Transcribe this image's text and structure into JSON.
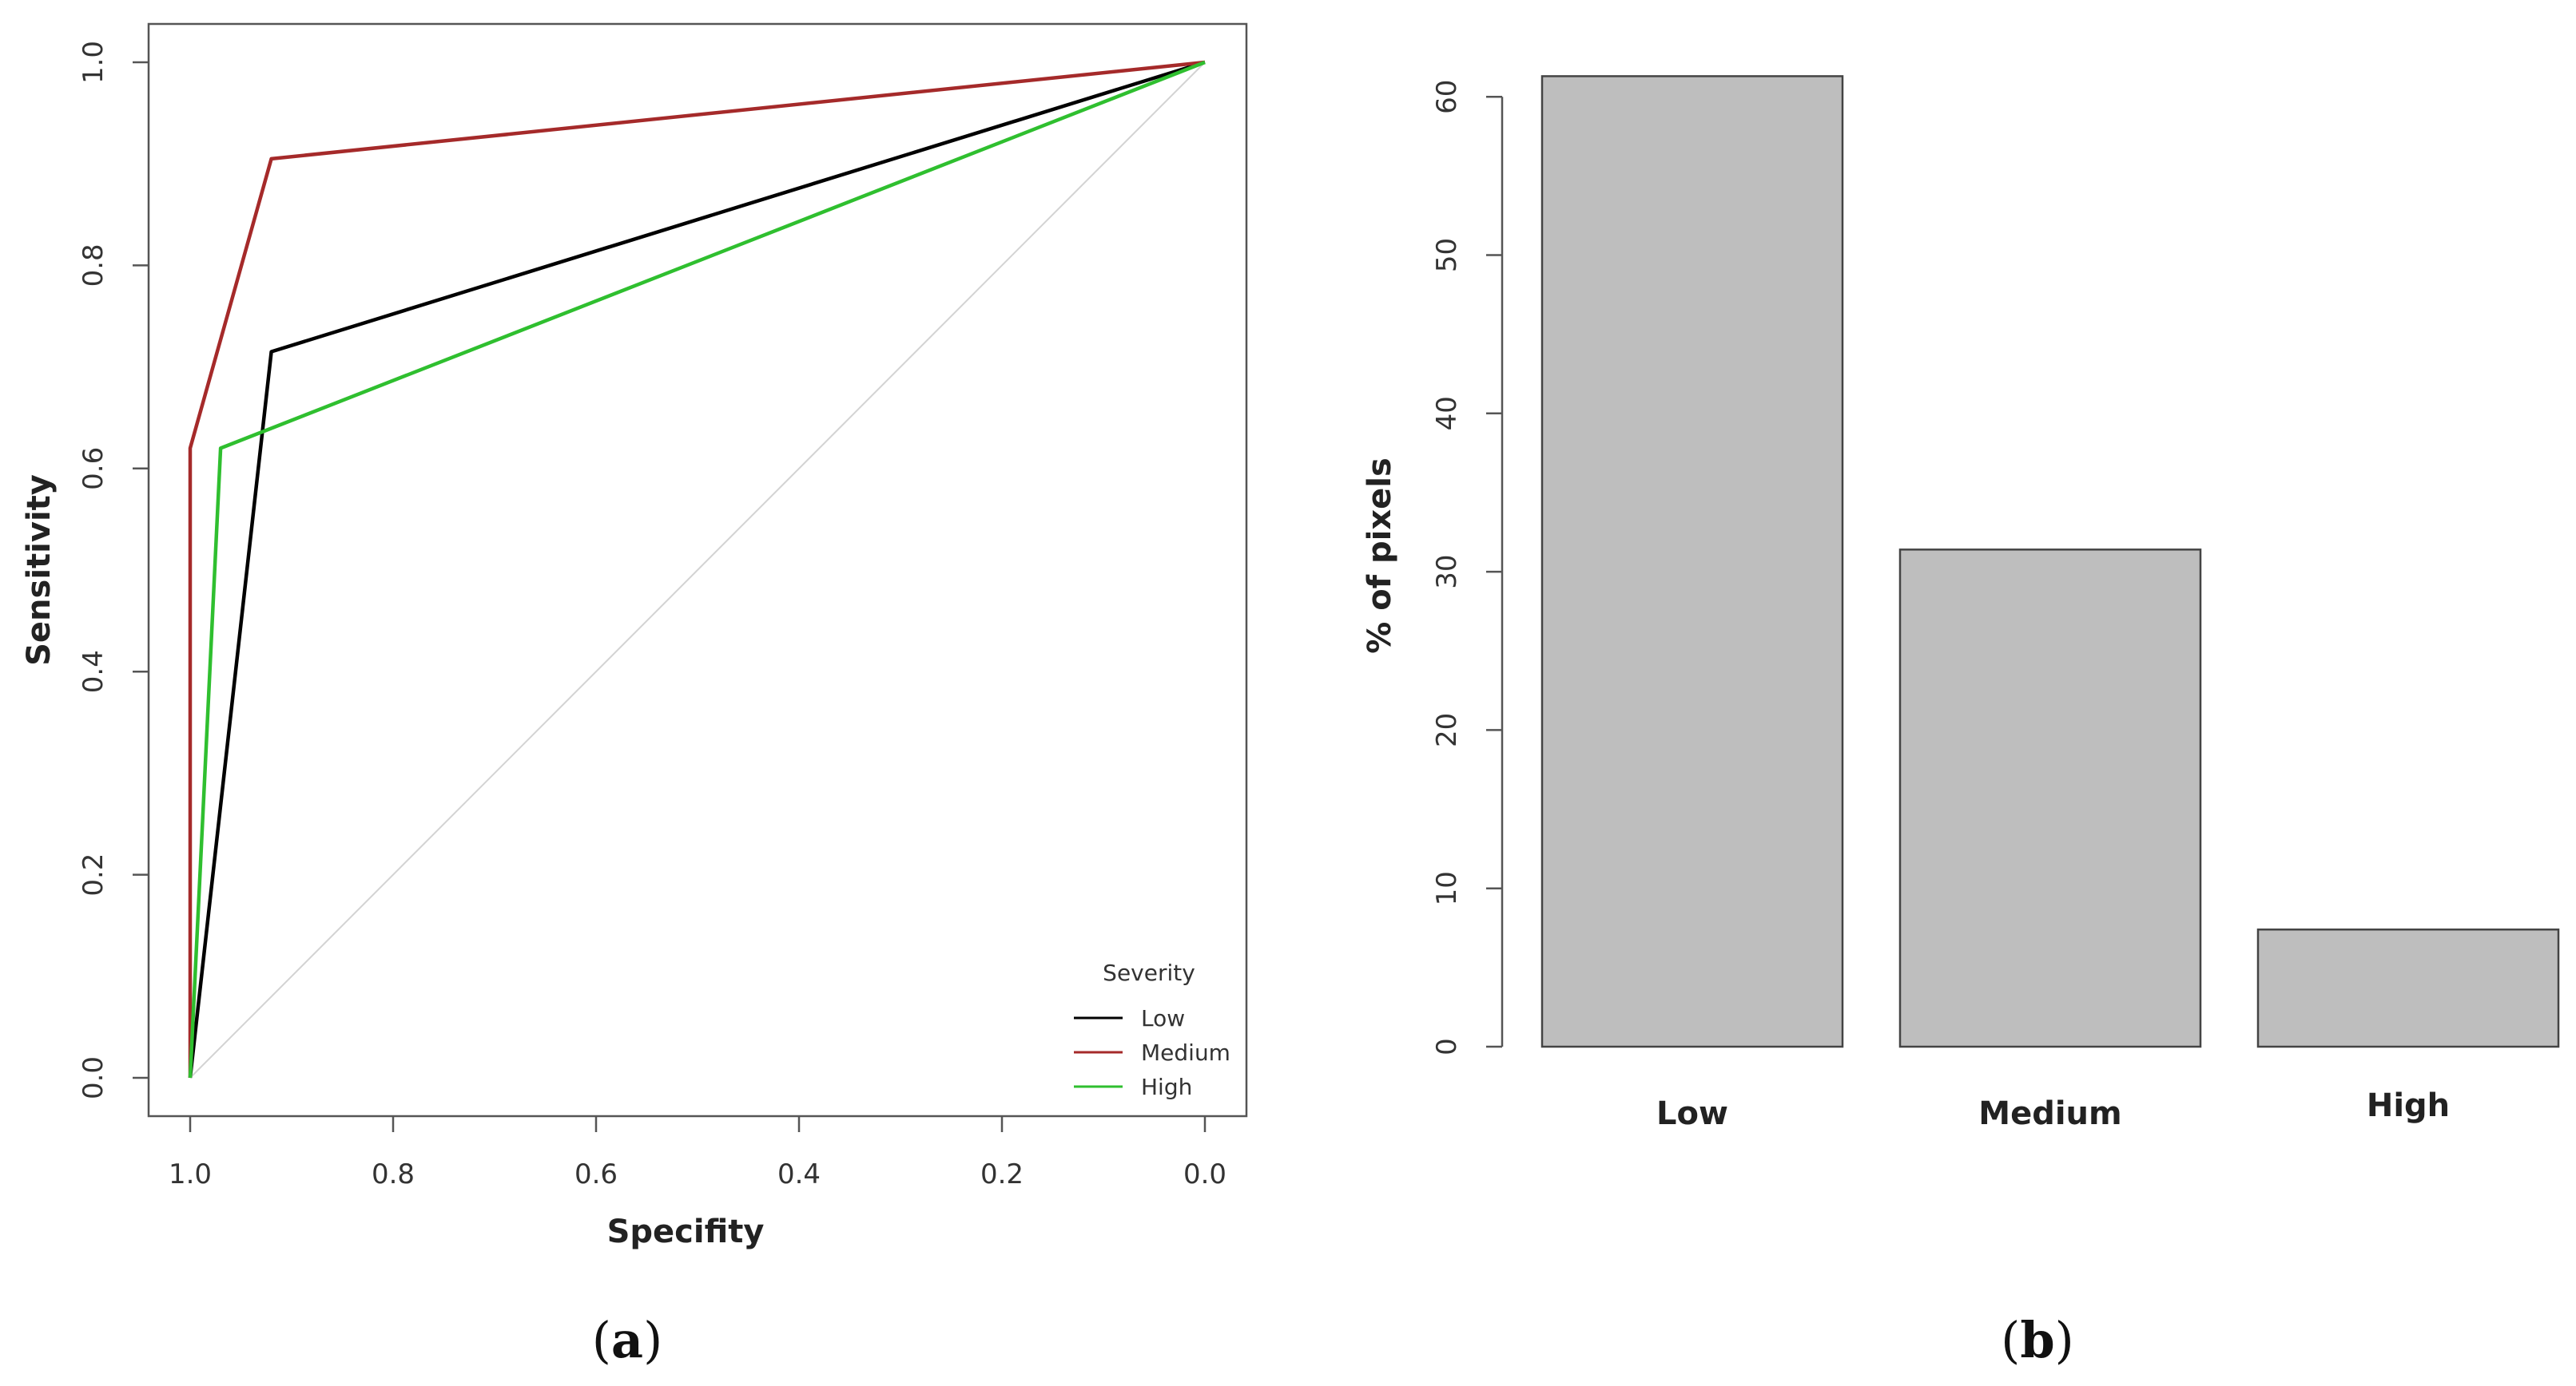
{
  "chart_data": [
    {
      "type": "line",
      "panel_label": {
        "open": "(",
        "letter": "a",
        "close": ")"
      },
      "title": "",
      "xlabel": "Specifity",
      "ylabel": "Sensitivity",
      "xlim": [
        1.0,
        0.0
      ],
      "ylim": [
        0.0,
        1.0
      ],
      "x_reversed": true,
      "xticks": [
        1.0,
        0.8,
        0.6,
        0.4,
        0.2,
        0.0
      ],
      "xtick_labels": [
        "1.0",
        "0.8",
        "0.6",
        "0.4",
        "0.2",
        "0.0"
      ],
      "yticks": [
        0.0,
        0.2,
        0.4,
        0.6,
        0.8,
        1.0
      ],
      "ytick_labels": [
        "0.0",
        "0.2",
        "0.4",
        "0.6",
        "0.8",
        "1.0"
      ],
      "reference_line": {
        "x": [
          1.0,
          0.0
        ],
        "y": [
          0.0,
          1.0
        ],
        "color": "#d3d3d3"
      },
      "legend": {
        "title": "Severity",
        "placement": "bottom-right"
      },
      "series": [
        {
          "name": "Low",
          "color": "#000000",
          "x": [
            1.0,
            0.92,
            0.0
          ],
          "y": [
            0.0,
            0.715,
            1.0
          ]
        },
        {
          "name": "Medium",
          "color": "#a52a2a",
          "x": [
            1.0,
            1.0,
            0.92,
            0.0
          ],
          "y": [
            0.0,
            0.62,
            0.905,
            1.0
          ]
        },
        {
          "name": "High",
          "color": "#2fbf2f",
          "x": [
            1.0,
            0.97,
            0.0
          ],
          "y": [
            0.0,
            0.62,
            1.0
          ]
        }
      ]
    },
    {
      "type": "bar",
      "panel_label": {
        "open": "(",
        "letter": "b",
        "close": ")"
      },
      "title": "",
      "xlabel": "",
      "ylabel": "% of pixels",
      "categories": [
        "Low",
        "Medium",
        "High"
      ],
      "values": [
        61.3,
        31.4,
        7.4
      ],
      "ylim": [
        0,
        60
      ],
      "yticks": [
        0,
        10,
        20,
        30,
        40,
        50,
        60
      ],
      "ytick_labels": [
        "0",
        "10",
        "20",
        "30",
        "40",
        "50",
        "60"
      ],
      "bar_color": "#bebebe",
      "edge_color": "#444444"
    }
  ]
}
